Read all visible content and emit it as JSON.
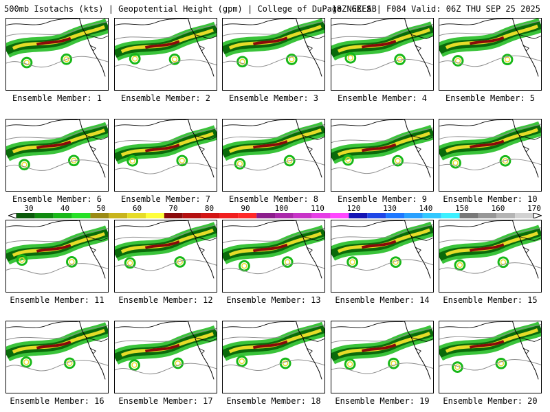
{
  "header": {
    "title_left": "500mb Isotachs (kts) | Geopotential Height (gpm) | College of DuPage NEXLAB",
    "title_right": "18Z GEFS | F084 Valid: 06Z THU SEP 25 2025"
  },
  "member_label_prefix": "Ensemble Member: ",
  "members": [
    1,
    2,
    3,
    4,
    5,
    6,
    7,
    8,
    9,
    10,
    11,
    12,
    13,
    14,
    15,
    16,
    17,
    18,
    19,
    20
  ],
  "colorbar": {
    "labels": [
      "30",
      "40",
      "50",
      "60",
      "70",
      "80",
      "90",
      "100",
      "110",
      "120",
      "130",
      "140",
      "150",
      "160",
      "170"
    ],
    "colors": [
      "#0a5a0a",
      "#0f8a0f",
      "#18b818",
      "#26e026",
      "#9a8a14",
      "#c8b41c",
      "#e6dc28",
      "#ffff3c",
      "#8a0a0a",
      "#b40f0f",
      "#d21414",
      "#f01e1e",
      "#ff2828",
      "#8c1e8c",
      "#aa28aa",
      "#c832c8",
      "#e63ce6",
      "#ff46ff",
      "#1414b4",
      "#1e46e6",
      "#1e78ff",
      "#28a0ff",
      "#32c8ff",
      "#3cf0ff",
      "#787878",
      "#969696",
      "#b4b4b4",
      "#d2d2d2"
    ]
  },
  "map_colors": {
    "jet_outer": "#18b818",
    "jet_mid": "#0a6a0a",
    "jet_yellow": "#e6dc28",
    "jet_core": "#8a0a0a",
    "contour": "#8c8c8c",
    "coast": "#000000"
  }
}
